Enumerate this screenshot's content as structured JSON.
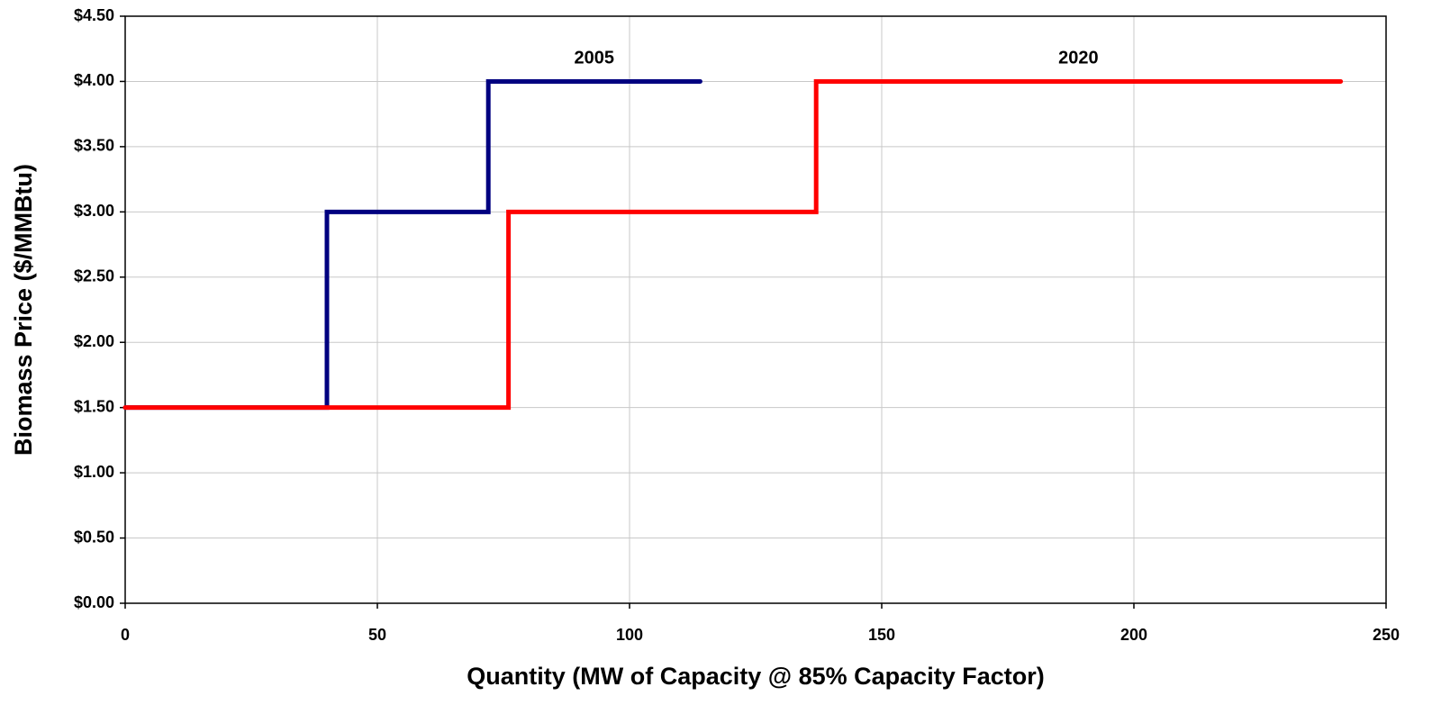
{
  "chart_data": {
    "type": "line",
    "x_label": "Quantity (MW of Capacity @ 85% Capacity Factor)",
    "y_label": "Biomass Price ($/MMBtu)",
    "series": [
      {
        "name": "2005",
        "color": "#000080",
        "x": [
          0,
          40,
          40,
          72,
          72,
          114
        ],
        "values": [
          1.5,
          1.5,
          3,
          3,
          4,
          4
        ]
      },
      {
        "name": "2020",
        "color": "#ff0000",
        "x": [
          0,
          76,
          76,
          137,
          137,
          241
        ],
        "values": [
          1.5,
          1.5,
          3,
          3,
          4,
          4
        ]
      }
    ],
    "xlim": [
      0,
      250
    ],
    "xticks": [
      0,
      50,
      100,
      150,
      200,
      250
    ],
    "ylim": [
      0,
      4.5
    ],
    "yticks": [
      {
        "value": 0,
        "label": "$0.00"
      },
      {
        "value": 0.5,
        "label": "$0.50"
      },
      {
        "value": 1,
        "label": "$1.00"
      },
      {
        "value": 1.5,
        "label": "$1.50"
      },
      {
        "value": 2,
        "label": "$2.00"
      },
      {
        "value": 2.5,
        "label": "$2.50"
      },
      {
        "value": 3,
        "label": "$3.00"
      },
      {
        "value": 3.5,
        "label": "$3.50"
      },
      {
        "value": 4,
        "label": "$4.00"
      },
      {
        "value": 4.5,
        "label": "$4.50"
      }
    ],
    "grid": true
  }
}
